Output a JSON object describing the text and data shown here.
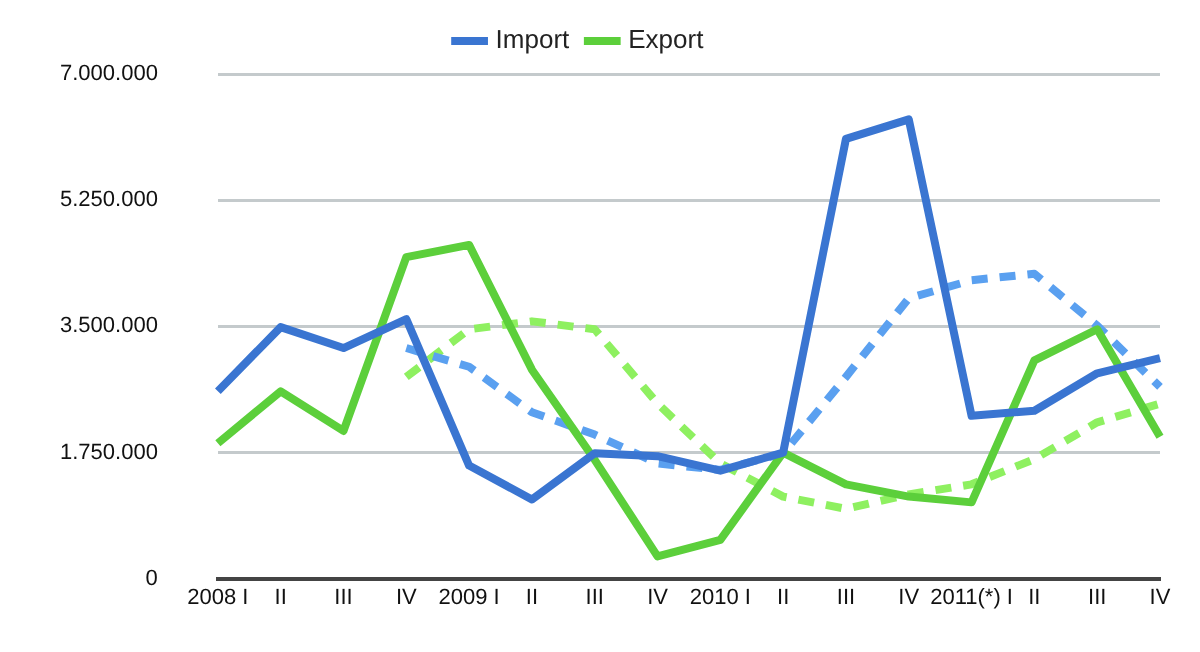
{
  "chart_data": {
    "type": "line",
    "categories": [
      "2008 I",
      "II",
      "III",
      "IV",
      "2009 I",
      "II",
      "III",
      "IV",
      "2010 I",
      "II",
      "III",
      "IV",
      "2011(*) I",
      "II",
      "III",
      "IV"
    ],
    "series": [
      {
        "name": "Import",
        "color": "#3a75d1",
        "values": [
          2600000,
          3490000,
          3200000,
          3600000,
          1570000,
          1100000,
          1740000,
          1700000,
          1500000,
          1750000,
          6100000,
          6370000,
          2260000,
          2330000,
          2850000,
          3060000
        ]
      },
      {
        "name": "Export",
        "color": "#5ccf3b",
        "values": [
          1880000,
          2600000,
          2050000,
          4460000,
          4630000,
          2900000,
          1650000,
          310000,
          540000,
          1750000,
          1310000,
          1140000,
          1060000,
          3030000,
          3460000,
          1970000
        ]
      },
      {
        "color": "#5aa0f0",
        "line_style": "dashed",
        "values": [
          null,
          null,
          null,
          3200000,
          2940000,
          2310000,
          2000000,
          1600000,
          1510000,
          1740000,
          2800000,
          3890000,
          4140000,
          4230000,
          3510000,
          2660000
        ]
      },
      {
        "color": "#8ef060",
        "line_style": "dashed",
        "values": [
          null,
          null,
          null,
          2800000,
          3460000,
          3570000,
          3460000,
          2430000,
          1600000,
          1140000,
          970000,
          1170000,
          1310000,
          1660000,
          2170000,
          2430000
        ]
      }
    ],
    "ylim": [
      0,
      7000000
    ],
    "yticks": [
      0,
      {
        "value": 1750000,
        "label": "1.750.000"
      },
      {
        "value": 3500000,
        "label": "3.500.000"
      },
      {
        "value": 5250000,
        "label": "5.250.000"
      },
      {
        "value": 7000000,
        "label": "7.000.000"
      }
    ],
    "grid": "y",
    "legend": "top",
    "marker": "none",
    "line_style": "solid"
  }
}
